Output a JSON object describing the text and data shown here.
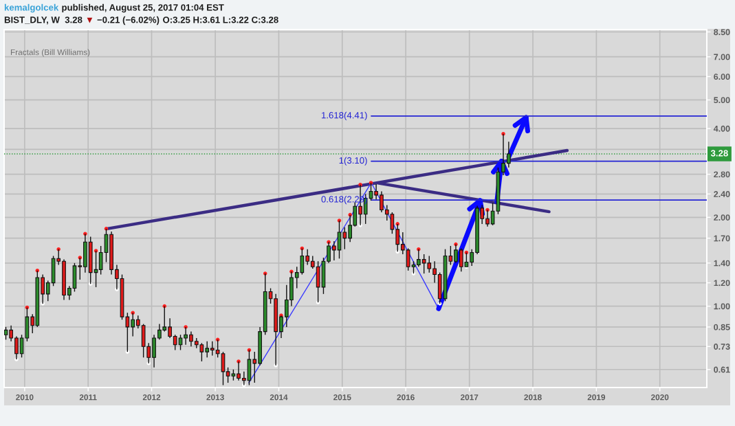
{
  "chart_data": {
    "type": "candlestick",
    "x": [
      "2009-09-15",
      "2009-10-15",
      "2009-11-15",
      "2009-12-15",
      "2010-01-15",
      "2010-02-15",
      "2010-03-15",
      "2010-04-15",
      "2010-05-15",
      "2010-06-15",
      "2010-07-15",
      "2010-08-15",
      "2010-09-15",
      "2010-10-15",
      "2010-11-15",
      "2010-12-15",
      "2011-01-15",
      "2011-02-15",
      "2011-03-15",
      "2011-04-15",
      "2011-05-15",
      "2011-06-15",
      "2011-07-15",
      "2011-08-15",
      "2011-09-15",
      "2011-10-15",
      "2011-11-15",
      "2011-12-15",
      "2012-01-15",
      "2012-02-15",
      "2012-03-15",
      "2012-04-15",
      "2012-05-15",
      "2012-06-15",
      "2012-07-15",
      "2012-08-15",
      "2012-09-15",
      "2012-10-15",
      "2012-11-15",
      "2012-12-15",
      "2013-01-15",
      "2013-02-15",
      "2013-03-15",
      "2013-04-15",
      "2013-05-15",
      "2013-06-15",
      "2013-07-15",
      "2013-08-15",
      "2013-09-15",
      "2013-10-15",
      "2013-11-15",
      "2013-12-15",
      "2014-01-15",
      "2014-02-15",
      "2014-03-15",
      "2014-04-15",
      "2014-05-15",
      "2014-06-15",
      "2014-07-15",
      "2014-08-15",
      "2014-09-15",
      "2014-10-15",
      "2014-11-15",
      "2014-12-15",
      "2015-01-15",
      "2015-02-15",
      "2015-03-15",
      "2015-04-15",
      "2015-05-15",
      "2015-06-15",
      "2015-07-15",
      "2015-08-15",
      "2015-09-15",
      "2015-10-15",
      "2015-11-15",
      "2015-12-15",
      "2016-01-15",
      "2016-02-15",
      "2016-03-15",
      "2016-04-15",
      "2016-05-15",
      "2016-06-15",
      "2016-07-15",
      "2016-08-15",
      "2016-09-15",
      "2016-10-15",
      "2016-11-15",
      "2016-12-15",
      "2017-01-15",
      "2017-02-15",
      "2017-03-15",
      "2017-04-15",
      "2017-05-15",
      "2017-06-15",
      "2017-07-15",
      "2017-08-15"
    ],
    "ohlc": [
      [
        0.8,
        0.85,
        0.77,
        0.83
      ],
      [
        0.83,
        0.86,
        0.76,
        0.78
      ],
      [
        0.78,
        0.79,
        0.66,
        0.69
      ],
      [
        0.69,
        0.8,
        0.67,
        0.78
      ],
      [
        0.78,
        0.99,
        0.76,
        0.92
      ],
      [
        0.92,
        0.94,
        0.81,
        0.86
      ],
      [
        0.86,
        1.32,
        0.85,
        1.25
      ],
      [
        1.25,
        1.28,
        1.02,
        1.1
      ],
      [
        1.1,
        1.22,
        1.04,
        1.2
      ],
      [
        1.2,
        1.48,
        1.17,
        1.45
      ],
      [
        1.45,
        1.56,
        1.38,
        1.42
      ],
      [
        1.42,
        1.44,
        1.05,
        1.09
      ],
      [
        1.09,
        1.17,
        1.05,
        1.15
      ],
      [
        1.15,
        1.4,
        1.12,
        1.37
      ],
      [
        1.37,
        1.46,
        1.23,
        1.36
      ],
      [
        1.36,
        1.76,
        1.3,
        1.65
      ],
      [
        1.65,
        1.72,
        1.19,
        1.3
      ],
      [
        1.3,
        1.54,
        1.16,
        1.33
      ],
      [
        1.33,
        1.6,
        1.28,
        1.52
      ],
      [
        1.52,
        1.83,
        1.41,
        1.75
      ],
      [
        1.75,
        1.79,
        1.28,
        1.33
      ],
      [
        1.33,
        1.38,
        1.14,
        1.24
      ],
      [
        1.24,
        1.28,
        0.9,
        0.92
      ],
      [
        0.92,
        0.95,
        0.7,
        0.85
      ],
      [
        0.85,
        0.95,
        0.79,
        0.9
      ],
      [
        0.9,
        0.93,
        0.84,
        0.86
      ],
      [
        0.86,
        0.87,
        0.67,
        0.73
      ],
      [
        0.73,
        0.75,
        0.64,
        0.67
      ],
      [
        0.67,
        0.8,
        0.62,
        0.78
      ],
      [
        0.78,
        0.87,
        0.77,
        0.83
      ],
      [
        0.83,
        1.0,
        0.82,
        0.85
      ],
      [
        0.85,
        0.91,
        0.78,
        0.79
      ],
      [
        0.79,
        0.8,
        0.71,
        0.74
      ],
      [
        0.74,
        0.8,
        0.71,
        0.78
      ],
      [
        0.78,
        0.85,
        0.74,
        0.8
      ],
      [
        0.8,
        0.82,
        0.73,
        0.76
      ],
      [
        0.76,
        0.78,
        0.72,
        0.74
      ],
      [
        0.74,
        0.75,
        0.65,
        0.7
      ],
      [
        0.7,
        0.76,
        0.67,
        0.72
      ],
      [
        0.72,
        0.76,
        0.68,
        0.71
      ],
      [
        0.71,
        0.77,
        0.67,
        0.69
      ],
      [
        0.69,
        0.7,
        0.54,
        0.6
      ],
      [
        0.6,
        0.62,
        0.55,
        0.58
      ],
      [
        0.58,
        0.61,
        0.56,
        0.59
      ],
      [
        0.59,
        0.65,
        0.56,
        0.57
      ],
      [
        0.57,
        0.6,
        0.54,
        0.56
      ],
      [
        0.56,
        0.71,
        0.54,
        0.66
      ],
      [
        0.66,
        0.7,
        0.55,
        0.64
      ],
      [
        0.64,
        0.85,
        0.63,
        0.82
      ],
      [
        0.82,
        1.29,
        0.8,
        1.12
      ],
      [
        1.12,
        1.15,
        1.02,
        1.06
      ],
      [
        1.06,
        1.1,
        0.63,
        0.82
      ],
      [
        0.82,
        0.93,
        0.78,
        0.92
      ],
      [
        0.92,
        1.18,
        0.85,
        1.05
      ],
      [
        1.05,
        1.31,
        1.0,
        1.25
      ],
      [
        1.25,
        1.36,
        1.15,
        1.3
      ],
      [
        1.3,
        1.57,
        1.28,
        1.48
      ],
      [
        1.48,
        1.56,
        1.38,
        1.42
      ],
      [
        1.42,
        1.48,
        1.34,
        1.36
      ],
      [
        1.36,
        1.42,
        1.03,
        1.16
      ],
      [
        1.16,
        1.46,
        1.1,
        1.42
      ],
      [
        1.42,
        1.65,
        1.4,
        1.6
      ],
      [
        1.6,
        1.66,
        1.43,
        1.55
      ],
      [
        1.55,
        1.95,
        1.45,
        1.78
      ],
      [
        1.78,
        1.85,
        1.56,
        1.7
      ],
      [
        1.7,
        2.04,
        1.65,
        1.88
      ],
      [
        1.88,
        2.25,
        1.86,
        2.18
      ],
      [
        2.18,
        2.58,
        1.88,
        2.05
      ],
      [
        2.05,
        2.4,
        1.9,
        2.32
      ],
      [
        2.32,
        2.62,
        2.28,
        2.45
      ],
      [
        2.45,
        2.59,
        2.3,
        2.38
      ],
      [
        2.38,
        2.45,
        2.08,
        2.12
      ],
      [
        2.12,
        2.2,
        1.95,
        2.05
      ],
      [
        2.05,
        2.08,
        1.76,
        1.82
      ],
      [
        1.82,
        1.9,
        1.53,
        1.62
      ],
      [
        1.62,
        1.78,
        1.5,
        1.55
      ],
      [
        1.55,
        1.57,
        1.32,
        1.36
      ],
      [
        1.36,
        1.42,
        1.29,
        1.38
      ],
      [
        1.38,
        1.56,
        1.36,
        1.44
      ],
      [
        1.44,
        1.5,
        1.29,
        1.4
      ],
      [
        1.4,
        1.48,
        1.3,
        1.34
      ],
      [
        1.34,
        1.42,
        1.2,
        1.28
      ],
      [
        1.28,
        1.3,
        1.02,
        1.06
      ],
      [
        1.06,
        1.56,
        1.04,
        1.48
      ],
      [
        1.48,
        1.6,
        1.38,
        1.42
      ],
      [
        1.42,
        1.62,
        1.4,
        1.55
      ],
      [
        1.55,
        1.57,
        1.31,
        1.36
      ],
      [
        1.36,
        1.52,
        1.36,
        1.41
      ],
      [
        1.41,
        1.56,
        1.37,
        1.52
      ],
      [
        1.52,
        2.19,
        1.5,
        2.15
      ],
      [
        2.15,
        2.2,
        1.9,
        1.98
      ],
      [
        1.98,
        2.12,
        1.86,
        1.9
      ],
      [
        1.9,
        2.24,
        1.88,
        2.1
      ],
      [
        2.1,
        2.95,
        2.05,
        2.85
      ],
      [
        2.85,
        3.84,
        2.78,
        3.05
      ],
      [
        3.05,
        3.61,
        2.95,
        3.28
      ]
    ],
    "colors": [
      "#2c8c2c",
      "#e01b1b",
      "#e01b1b",
      "#2c8c2c",
      "#2c8c2c",
      "#e01b1b",
      "#2c8c2c",
      "#e01b1b",
      "#2c8c2c",
      "#2c8c2c",
      "#e01b1b",
      "#e01b1b",
      "#2c8c2c",
      "#2c8c2c",
      "#e01b1b",
      "#2c8c2c",
      "#e01b1b",
      "#2c8c2c",
      "#2c8c2c",
      "#2c8c2c",
      "#e01b1b",
      "#e01b1b",
      "#e01b1b",
      "#e01b1b",
      "#2c8c2c",
      "#e01b1b",
      "#e01b1b",
      "#e01b1b",
      "#2c8c2c",
      "#2c8c2c",
      "#2c8c2c",
      "#e01b1b",
      "#e01b1b",
      "#2c8c2c",
      "#2c8c2c",
      "#e01b1b",
      "#e01b1b",
      "#e01b1b",
      "#2c8c2c",
      "#e01b1b",
      "#e01b1b",
      "#e01b1b",
      "#e01b1b",
      "#2c8c2c",
      "#e01b1b",
      "#e01b1b",
      "#2c8c2c",
      "#e01b1b",
      "#2c8c2c",
      "#2c8c2c",
      "#e01b1b",
      "#e01b1b",
      "#2c8c2c",
      "#2c8c2c",
      "#2c8c2c",
      "#2c8c2c",
      "#2c8c2c",
      "#e01b1b",
      "#e01b1b",
      "#e01b1b",
      "#2c8c2c",
      "#2c8c2c",
      "#e01b1b",
      "#2c8c2c",
      "#e01b1b",
      "#2c8c2c",
      "#2c8c2c",
      "#e01b1b",
      "#2c8c2c",
      "#2c8c2c",
      "#e01b1b",
      "#e01b1b",
      "#e01b1b",
      "#e01b1b",
      "#e01b1b",
      "#e01b1b",
      "#e01b1b",
      "#2c8c2c",
      "#2c8c2c",
      "#e01b1b",
      "#e01b1b",
      "#e01b1b",
      "#e01b1b",
      "#2c8c2c",
      "#e01b1b",
      "#2c8c2c",
      "#e01b1b",
      "#2c8c2c",
      "#2c8c2c",
      "#2c8c2c",
      "#e01b1b",
      "#e01b1b",
      "#2c8c2c",
      "#2c8c2c",
      "#2c8c2c",
      "#2c8c2c"
    ],
    "series": [
      {
        "type": "line",
        "color": "#3b2c84",
        "x": [
          "2011-04-21",
          "2018-07-17"
        ],
        "values": [
          1.83,
          3.37
        ]
      },
      {
        "type": "line",
        "color": "#3b2c84",
        "x": [
          "2015-07-30",
          "2018-04-04"
        ],
        "values": [
          2.61,
          2.09
        ]
      },
      {
        "type": "line",
        "color": "#3a3aff",
        "x": [
          "2013-07-13",
          "2015-06-17",
          "2016-07-08"
        ],
        "values": [
          0.55,
          2.62,
          0.98
        ]
      },
      {
        "type": "line",
        "color": "#0a0aff",
        "x": [
          "2016-07-08",
          "2017-03-04"
        ],
        "values": [
          0.98,
          2.28
        ]
      },
      {
        "type": "line",
        "color": "#0a0aff",
        "x": [
          "2017-06-08",
          "2017-07-05"
        ],
        "values": [
          2.26,
          3.1
        ]
      },
      {
        "type": "line",
        "color": "#0a0aff",
        "x": [
          "2017-08-16",
          "2017-11-23"
        ],
        "values": [
          3.21,
          4.36
        ]
      },
      {
        "type": "line",
        "name": "1.618(4.41)",
        "color": "#2424d4",
        "x": [
          "2015-06-17",
          "2020-09-27"
        ],
        "values": [
          4.41,
          4.41
        ]
      },
      {
        "type": "line",
        "name": "1(3.10)",
        "color": "#2424d4",
        "x": [
          "2015-06-17",
          "2020-09-27"
        ],
        "values": [
          3.1,
          3.1
        ]
      },
      {
        "type": "line",
        "name": "0.618(2.29)",
        "color": "#2424d4",
        "x": [
          "2015-06-17",
          "2020-09-27"
        ],
        "values": [
          2.29,
          2.29
        ]
      },
      {
        "type": "scatter",
        "color": "#ff2020",
        "marker": "circle",
        "x": [
          "2010-01-15",
          "2010-03-15",
          "2010-07-15",
          "2010-11-15",
          "2010-12-15",
          "2011-02-15",
          "2011-04-15",
          "2011-09-15",
          "2012-03-15",
          "2012-07-15",
          "2013-01-15",
          "2013-05-15",
          "2013-07-15",
          "2013-10-15",
          "2014-01-15",
          "2014-03-15",
          "2014-05-15",
          "2014-10-15",
          "2014-12-15",
          "2015-02-15",
          "2015-04-15",
          "2015-06-15",
          "2015-11-15",
          "2016-03-15",
          "2016-10-15",
          "2016-12-15",
          "2017-04-15",
          "2017-07-15"
        ],
        "values": [
          0.99,
          1.32,
          1.56,
          1.46,
          1.76,
          1.54,
          1.83,
          0.95,
          1.0,
          0.85,
          0.77,
          0.65,
          0.71,
          1.29,
          0.93,
          1.31,
          1.57,
          1.65,
          1.95,
          2.04,
          2.58,
          2.62,
          1.9,
          1.56,
          1.62,
          1.52,
          2.12,
          3.84
        ]
      },
      {
        "type": "scatter",
        "color": "#ffffff",
        "marker": "circle",
        "x": [
          "2009-11-15",
          "2010-04-15",
          "2011-01-15",
          "2011-06-15",
          "2011-08-15",
          "2011-12-15",
          "2013-06-15",
          "2013-12-15",
          "2014-08-15",
          "2015-04-15",
          "2015-11-15",
          "2016-02-15",
          "2016-07-15",
          "2016-12-15"
        ],
        "values": [
          0.66,
          1.02,
          1.19,
          1.14,
          0.7,
          0.64,
          0.54,
          0.63,
          1.03,
          1.88,
          1.53,
          1.29,
          1.02,
          1.36
        ]
      }
    ],
    "ref_lines": [
      {
        "axis": "y",
        "value": 3.28,
        "label": "3.28",
        "color": "#2e9a3c",
        "line_style": "dotted"
      }
    ],
    "xlim": [
      "2009-09-05",
      "2020-09-27"
    ],
    "xticks": [
      {
        "value": "2010-01-01",
        "label": "2010"
      },
      {
        "value": "2011-01-01",
        "label": "2011"
      },
      {
        "value": "2012-01-01",
        "label": "2012"
      },
      {
        "value": "2013-01-01",
        "label": "2013"
      },
      {
        "value": "2014-01-01",
        "label": "2014"
      },
      {
        "value": "2015-01-01",
        "label": "2015"
      },
      {
        "value": "2016-01-01",
        "label": "2016"
      },
      {
        "value": "2017-01-01",
        "label": "2017"
      },
      {
        "value": "2018-01-01",
        "label": "2018"
      },
      {
        "value": "2019-01-01",
        "label": "2019"
      },
      {
        "value": "2020-01-01",
        "label": "2020"
      }
    ],
    "ylim": [
      0.53,
      8.66
    ],
    "yticks": [
      0.61,
      0.73,
      0.85,
      {
        "value": 1,
        "label": "1.00"
      },
      {
        "value": 1.2,
        "label": "1.20"
      },
      {
        "value": 1.4,
        "label": "1.40"
      },
      {
        "value": 1.7,
        "label": "1.70"
      },
      {
        "value": 2,
        "label": "2.00"
      },
      {
        "value": 2.4,
        "label": "2.40"
      },
      {
        "value": 2.8,
        "label": "2.80"
      },
      {
        "value": 3.4,
        "label": null
      },
      {
        "value": 4,
        "label": "4.00"
      },
      {
        "value": 5,
        "label": "5.00"
      },
      {
        "value": 6,
        "label": "6.00"
      },
      {
        "value": 7,
        "label": "7.00"
      },
      {
        "value": 8.5,
        "label": "8.50"
      }
    ],
    "log": "y",
    "grid": true,
    "annotations": [
      "kemalgolcek",
      "published, August 25, 2017 01:04 EST",
      "BIST_DLY, W  3.28",
      "▼",
      "−0.21 (−6.02%)",
      "O:3.25 H:3.61 L:3.22 C:3.28",
      "Fractals (Bill Williams)"
    ]
  }
}
